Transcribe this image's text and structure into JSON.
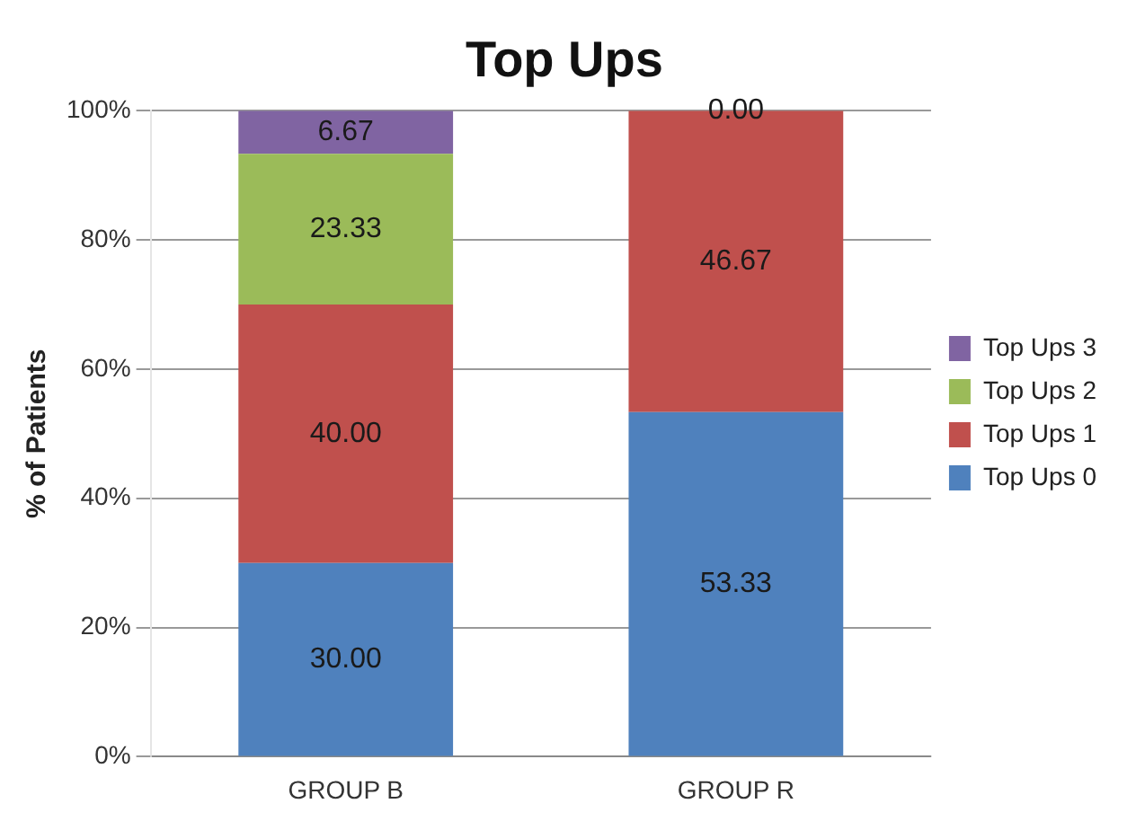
{
  "chart_data": {
    "type": "bar",
    "title": "Top Ups",
    "ylabel": "% of Patients",
    "categories": [
      "GROUP B",
      "GROUP R"
    ],
    "stacked": true,
    "series": [
      {
        "name": "Top Ups 0",
        "color": "#4f81bd",
        "values": [
          30.0,
          53.33
        ],
        "value_labels": [
          "30.00",
          "53.33"
        ]
      },
      {
        "name": "Top Ups 1",
        "color": "#c0504d",
        "values": [
          40.0,
          46.67
        ],
        "value_labels": [
          "40.00",
          "46.67"
        ]
      },
      {
        "name": "Top Ups 2",
        "color": "#9bbb59",
        "values": [
          23.33,
          0
        ],
        "value_labels": [
          "23.33",
          null
        ]
      },
      {
        "name": "Top Ups 3",
        "color": "#8064a2",
        "values": [
          6.67,
          0
        ],
        "value_labels": [
          "6.67",
          "0.00"
        ]
      }
    ],
    "ylim": [
      0,
      100
    ],
    "yticks": [
      {
        "value": 0,
        "label": "0%"
      },
      {
        "value": 20,
        "label": "20%"
      },
      {
        "value": 40,
        "label": "40%"
      },
      {
        "value": 60,
        "label": "60%"
      },
      {
        "value": 80,
        "label": "80%"
      },
      {
        "value": 100,
        "label": "100%"
      }
    ],
    "grid": "y",
    "legend": "right"
  }
}
